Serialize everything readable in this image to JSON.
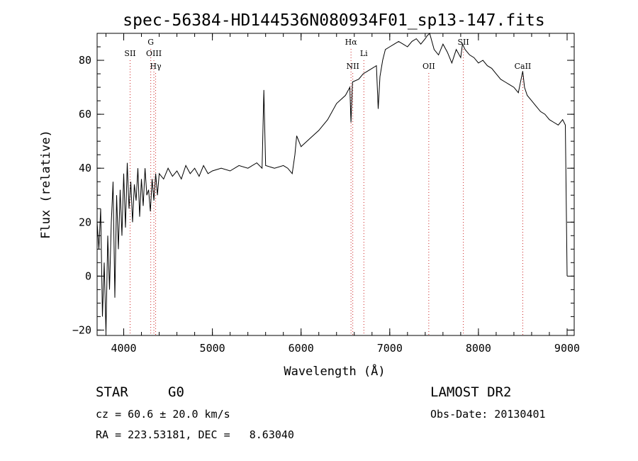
{
  "chart_data": {
    "type": "line",
    "title": "spec-56384-HD144536N080934F01_sp13-147.fits",
    "xlabel": "Wavelength (Å)",
    "ylabel": "Flux (relative)",
    "xlim": [
      3700,
      9080
    ],
    "ylim": [
      -22,
      90
    ],
    "xticks": [
      4000,
      5000,
      6000,
      7000,
      8000,
      9000
    ],
    "yticks": [
      -20,
      0,
      20,
      40,
      60,
      80
    ],
    "grid": false,
    "line_color": "#000000",
    "marker_color": "#cc2222",
    "series": [
      {
        "x": [
          3700,
          3720,
          3740,
          3760,
          3780,
          3800,
          3820,
          3840,
          3860,
          3880,
          3900,
          3920,
          3940,
          3960,
          3980,
          4000,
          4020,
          4040,
          4060,
          4080,
          4100,
          4120,
          4140,
          4160,
          4180,
          4200,
          4220,
          4240,
          4260,
          4280,
          4300,
          4320,
          4340,
          4360,
          4380,
          4400,
          4450,
          4500,
          4550,
          4600,
          4650,
          4700,
          4750,
          4800,
          4850,
          4900,
          4950,
          5000,
          5100,
          5200,
          5300,
          5400,
          5500,
          5560,
          5580,
          5600,
          5700,
          5800,
          5850,
          5900,
          5930,
          5950,
          6000,
          6100,
          6200,
          6300,
          6400,
          6500,
          6550,
          6563,
          6580,
          6650,
          6700,
          6750,
          6800,
          6850,
          6870,
          6890,
          6920,
          6950,
          7000,
          7050,
          7100,
          7150,
          7200,
          7250,
          7300,
          7350,
          7400,
          7420,
          7450,
          7500,
          7550,
          7600,
          7650,
          7700,
          7750,
          7800,
          7820,
          7850,
          7900,
          7950,
          8000,
          8050,
          8100,
          8150,
          8200,
          8250,
          8300,
          8350,
          8400,
          8450,
          8500,
          8520,
          8550,
          8600,
          8650,
          8700,
          8750,
          8800,
          8850,
          8900,
          8950,
          8980,
          9000
        ],
        "y": [
          20,
          10,
          25,
          -15,
          5,
          -21,
          15,
          -5,
          20,
          35,
          -8,
          30,
          10,
          32,
          15,
          38,
          18,
          42,
          25,
          35,
          20,
          34,
          28,
          40,
          22,
          36,
          26,
          40,
          30,
          32,
          24,
          36,
          28,
          38,
          30,
          38,
          36,
          40,
          37,
          39,
          36,
          41,
          38,
          40,
          37,
          41,
          38,
          39,
          40,
          39,
          41,
          40,
          42,
          40,
          69,
          41,
          40,
          41,
          40,
          38,
          45,
          52,
          48,
          51,
          54,
          58,
          64,
          67,
          70,
          57,
          72,
          73,
          75,
          76,
          77,
          78,
          62,
          74,
          80,
          84,
          85,
          86,
          87,
          86,
          85,
          87,
          88,
          86,
          88,
          89,
          90,
          84,
          82,
          86,
          83,
          79,
          84,
          81,
          86,
          84,
          82,
          81,
          79,
          80,
          78,
          77,
          75,
          73,
          72,
          71,
          70,
          68,
          76,
          70,
          67,
          65,
          63,
          61,
          60,
          58,
          57,
          56,
          58,
          56,
          0
        ]
      }
    ],
    "markers": [
      {
        "label": "SII",
        "x": 4072,
        "row": 2
      },
      {
        "label": "G",
        "x": 4305,
        "row": 1
      },
      {
        "label": "OIII",
        "x": 4340,
        "row": 2
      },
      {
        "label": "Hγ",
        "x": 4360,
        "row": 3
      },
      {
        "label": "Hα",
        "x": 6563,
        "row": 1
      },
      {
        "label": "NII",
        "x": 6583,
        "row": 3
      },
      {
        "label": "Li",
        "x": 6708,
        "row": 2
      },
      {
        "label": "OII",
        "x": 7440,
        "row": 3
      },
      {
        "label": "SII",
        "x": 7830,
        "row": 1
      },
      {
        "label": "CaII",
        "x": 8500,
        "row": 3
      }
    ]
  },
  "info": {
    "object_type": "STAR",
    "subclass": "G0",
    "survey": "LAMOST DR2",
    "redshift": "cz = 60.6 ± 20.0 km/s",
    "obs_date": "Obs-Date: 20130401",
    "coords": "RA = 223.53181, DEC =   8.63040"
  }
}
